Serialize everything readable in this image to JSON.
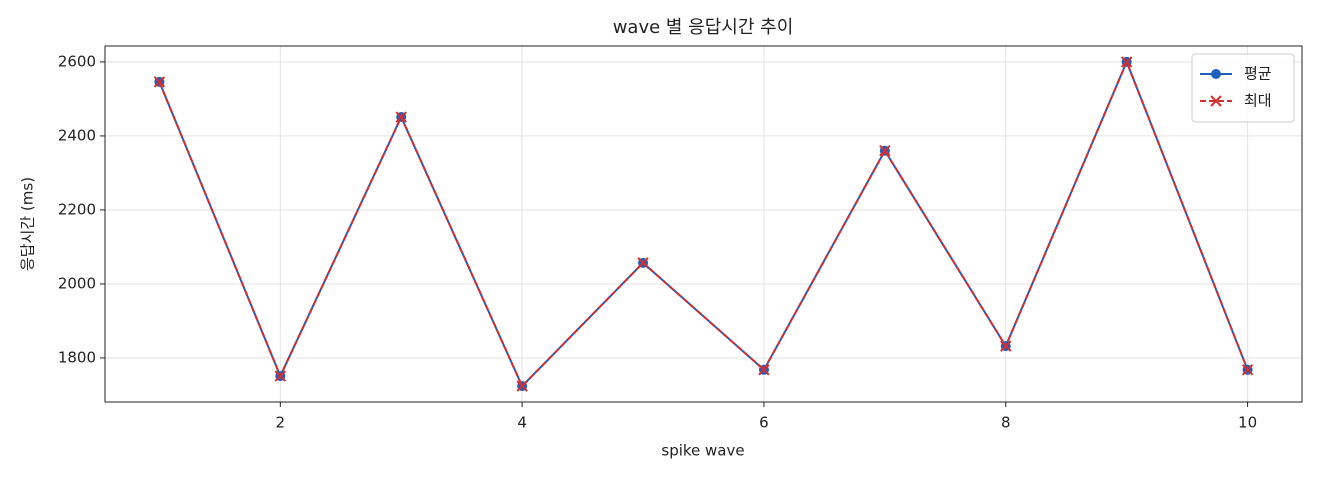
{
  "chart_data": {
    "type": "line",
    "title": "wave 별 응답시간 추이",
    "x_label": "spike wave",
    "y_label": "응답시간 (ms)",
    "x": [
      1,
      2,
      3,
      4,
      5,
      6,
      7,
      8,
      9,
      10
    ],
    "series": [
      {
        "name": "평균",
        "color": "#1f5fbf",
        "marker": "o",
        "linestyle": "solid",
        "values": [
          2546,
          1751,
          2451,
          1724,
          2057,
          1768,
          2360,
          1832,
          2600,
          1768
        ]
      },
      {
        "name": "최대",
        "color": "#d32f2f",
        "marker": "x",
        "linestyle": "dashed",
        "values": [
          2546,
          1751,
          2451,
          1724,
          2057,
          1768,
          2360,
          1832,
          2600,
          1768
        ]
      }
    ],
    "xlim": [
      0.55,
      10.45
    ],
    "xticks": [
      2,
      4,
      6,
      8,
      10
    ],
    "ylim": [
      1681,
      2643
    ],
    "yticks": [
      1800,
      2000,
      2200,
      2400,
      2600
    ],
    "grid": true,
    "legend_loc": "upper right"
  }
}
